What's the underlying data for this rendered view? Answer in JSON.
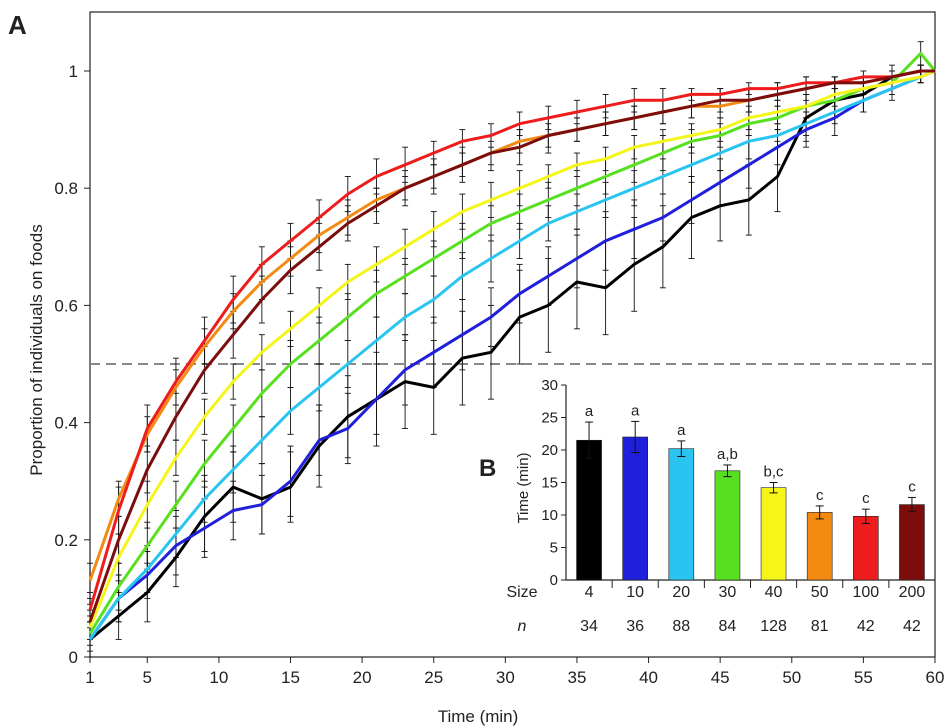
{
  "chart_data": [
    {
      "panel": "A",
      "type": "line",
      "xlabel": "Time (min)",
      "ylabel": "Proportion of individuals on foods",
      "xlim": [
        1,
        60
      ],
      "ylim": [
        0,
        1.0
      ],
      "xticks": [
        1,
        5,
        10,
        15,
        20,
        25,
        30,
        35,
        40,
        45,
        50,
        55,
        60
      ],
      "yticks": [
        0,
        0.2,
        0.4,
        0.6,
        0.8,
        1
      ],
      "ytick_labels": [
        "0",
        "0.2",
        "0.4",
        "0.6",
        "0.8",
        "1"
      ],
      "reference_line": {
        "y": 0.5,
        "style": "dashed"
      },
      "error_bars": true,
      "grid": false,
      "series": [
        {
          "color": "#000000",
          "x": [
            1,
            3,
            5,
            7,
            9,
            11,
            13,
            15,
            17,
            19,
            21,
            23,
            25,
            27,
            29,
            31,
            33,
            35,
            37,
            39,
            41,
            43,
            45,
            47,
            49,
            51,
            53,
            55,
            57,
            59,
            60
          ],
          "y": [
            0.03,
            0.07,
            0.11,
            0.17,
            0.24,
            0.29,
            0.27,
            0.29,
            0.36,
            0.41,
            0.44,
            0.47,
            0.46,
            0.51,
            0.52,
            0.58,
            0.6,
            0.64,
            0.63,
            0.67,
            0.7,
            0.75,
            0.77,
            0.78,
            0.82,
            0.92,
            0.95,
            0.96,
            0.99,
            1.0,
            1.0
          ],
          "err": [
            0.03,
            0.04,
            0.05,
            0.05,
            0.06,
            0.06,
            0.06,
            0.06,
            0.07,
            0.07,
            0.08,
            0.08,
            0.08,
            0.08,
            0.08,
            0.08,
            0.08,
            0.08,
            0.08,
            0.08,
            0.07,
            0.07,
            0.06,
            0.06,
            0.06,
            0.04,
            0.03,
            0.03,
            0.02,
            0.01,
            0.0
          ]
        },
        {
          "color": "#1f1fdc",
          "x": [
            1,
            3,
            5,
            7,
            9,
            11,
            13,
            15,
            17,
            19,
            21,
            23,
            25,
            27,
            29,
            31,
            33,
            35,
            37,
            39,
            41,
            43,
            45,
            47,
            49,
            51,
            53,
            55,
            57,
            59,
            60
          ],
          "y": [
            0.03,
            0.1,
            0.14,
            0.19,
            0.22,
            0.25,
            0.26,
            0.3,
            0.37,
            0.39,
            0.44,
            0.49,
            0.52,
            0.55,
            0.58,
            0.62,
            0.65,
            0.68,
            0.71,
            0.73,
            0.75,
            0.78,
            0.81,
            0.84,
            0.87,
            0.9,
            0.92,
            0.95,
            0.97,
            0.99,
            1.0
          ],
          "err": [
            0.03,
            0.04,
            0.04,
            0.05,
            0.05,
            0.05,
            0.05,
            0.06,
            0.06,
            0.06,
            0.06,
            0.06,
            0.06,
            0.06,
            0.05,
            0.05,
            0.05,
            0.05,
            0.05,
            0.05,
            0.04,
            0.04,
            0.04,
            0.04,
            0.03,
            0.03,
            0.03,
            0.02,
            0.02,
            0.01,
            0.0
          ]
        },
        {
          "color": "#29c5f0",
          "x": [
            1,
            3,
            5,
            7,
            9,
            11,
            13,
            15,
            17,
            19,
            21,
            23,
            25,
            27,
            29,
            31,
            33,
            35,
            37,
            39,
            41,
            43,
            45,
            47,
            49,
            51,
            53,
            55,
            57,
            59,
            60
          ],
          "y": [
            0.03,
            0.1,
            0.15,
            0.21,
            0.27,
            0.32,
            0.37,
            0.42,
            0.46,
            0.5,
            0.54,
            0.58,
            0.61,
            0.65,
            0.68,
            0.71,
            0.74,
            0.76,
            0.78,
            0.8,
            0.82,
            0.84,
            0.86,
            0.88,
            0.89,
            0.91,
            0.93,
            0.95,
            0.97,
            0.99,
            1.0
          ],
          "err": [
            0.03,
            0.04,
            0.04,
            0.04,
            0.04,
            0.04,
            0.04,
            0.04,
            0.04,
            0.04,
            0.04,
            0.04,
            0.04,
            0.04,
            0.04,
            0.03,
            0.03,
            0.03,
            0.03,
            0.03,
            0.03,
            0.03,
            0.03,
            0.03,
            0.02,
            0.02,
            0.02,
            0.02,
            0.01,
            0.01,
            0.0
          ]
        },
        {
          "color": "#57e01f",
          "x": [
            1,
            3,
            5,
            7,
            9,
            11,
            13,
            15,
            17,
            19,
            21,
            23,
            25,
            27,
            29,
            31,
            33,
            35,
            37,
            39,
            41,
            43,
            45,
            47,
            49,
            51,
            53,
            55,
            57,
            59,
            60
          ],
          "y": [
            0.04,
            0.12,
            0.19,
            0.26,
            0.33,
            0.39,
            0.45,
            0.5,
            0.54,
            0.58,
            0.62,
            0.65,
            0.68,
            0.71,
            0.74,
            0.76,
            0.78,
            0.8,
            0.82,
            0.84,
            0.86,
            0.88,
            0.89,
            0.91,
            0.92,
            0.94,
            0.95,
            0.97,
            0.98,
            1.03,
            1.0
          ],
          "err": [
            0.03,
            0.04,
            0.04,
            0.04,
            0.04,
            0.04,
            0.04,
            0.04,
            0.04,
            0.04,
            0.04,
            0.03,
            0.03,
            0.03,
            0.03,
            0.03,
            0.03,
            0.03,
            0.03,
            0.03,
            0.03,
            0.02,
            0.02,
            0.02,
            0.02,
            0.02,
            0.02,
            0.01,
            0.01,
            0.02,
            0.0
          ]
        },
        {
          "color": "#f5f51a",
          "x": [
            1,
            3,
            5,
            7,
            9,
            11,
            13,
            15,
            17,
            19,
            21,
            23,
            25,
            27,
            29,
            31,
            33,
            35,
            37,
            39,
            41,
            43,
            45,
            47,
            49,
            51,
            53,
            55,
            57,
            59,
            60
          ],
          "y": [
            0.05,
            0.17,
            0.26,
            0.34,
            0.41,
            0.47,
            0.52,
            0.56,
            0.6,
            0.64,
            0.67,
            0.7,
            0.73,
            0.76,
            0.78,
            0.8,
            0.82,
            0.84,
            0.85,
            0.87,
            0.88,
            0.89,
            0.9,
            0.92,
            0.93,
            0.94,
            0.96,
            0.97,
            0.98,
            0.99,
            1.0
          ],
          "err": [
            0.03,
            0.04,
            0.04,
            0.03,
            0.03,
            0.03,
            0.03,
            0.03,
            0.03,
            0.03,
            0.03,
            0.03,
            0.03,
            0.03,
            0.03,
            0.03,
            0.02,
            0.02,
            0.02,
            0.02,
            0.02,
            0.02,
            0.02,
            0.02,
            0.02,
            0.02,
            0.02,
            0.01,
            0.01,
            0.01,
            0.0
          ]
        },
        {
          "color": "#f38a12",
          "x": [
            1,
            3,
            5,
            7,
            9,
            11,
            13,
            15,
            17,
            19,
            21,
            23,
            25,
            27,
            29,
            31,
            33,
            35,
            37,
            39,
            41,
            43,
            45,
            47,
            49,
            51,
            53,
            55,
            57,
            59,
            60
          ],
          "y": [
            0.13,
            0.27,
            0.38,
            0.46,
            0.53,
            0.59,
            0.64,
            0.68,
            0.72,
            0.75,
            0.78,
            0.8,
            0.82,
            0.84,
            0.86,
            0.88,
            0.89,
            0.9,
            0.91,
            0.92,
            0.93,
            0.94,
            0.94,
            0.95,
            0.96,
            0.97,
            0.98,
            0.98,
            0.99,
            1.0,
            1.0
          ],
          "err": [
            0.03,
            0.03,
            0.03,
            0.03,
            0.03,
            0.03,
            0.03,
            0.03,
            0.03,
            0.03,
            0.02,
            0.02,
            0.02,
            0.02,
            0.02,
            0.02,
            0.02,
            0.02,
            0.02,
            0.02,
            0.02,
            0.02,
            0.02,
            0.02,
            0.01,
            0.01,
            0.01,
            0.01,
            0.01,
            0.01,
            0.0
          ]
        },
        {
          "color": "#ee1c1c",
          "x": [
            1,
            3,
            5,
            7,
            9,
            11,
            13,
            15,
            17,
            19,
            21,
            23,
            25,
            27,
            29,
            31,
            33,
            35,
            37,
            39,
            41,
            43,
            45,
            47,
            49,
            51,
            53,
            55,
            57,
            59,
            60
          ],
          "y": [
            0.08,
            0.25,
            0.39,
            0.47,
            0.54,
            0.61,
            0.67,
            0.71,
            0.75,
            0.79,
            0.82,
            0.84,
            0.86,
            0.88,
            0.89,
            0.91,
            0.92,
            0.93,
            0.94,
            0.95,
            0.95,
            0.96,
            0.96,
            0.97,
            0.97,
            0.98,
            0.98,
            0.99,
            0.99,
            1.0,
            1.0
          ],
          "err": [
            0.03,
            0.04,
            0.04,
            0.04,
            0.04,
            0.04,
            0.03,
            0.03,
            0.03,
            0.03,
            0.03,
            0.03,
            0.02,
            0.02,
            0.02,
            0.02,
            0.02,
            0.02,
            0.02,
            0.02,
            0.02,
            0.01,
            0.01,
            0.01,
            0.01,
            0.01,
            0.01,
            0.01,
            0.01,
            0.01,
            0.0
          ]
        },
        {
          "color": "#7d0d0d",
          "x": [
            1,
            3,
            5,
            7,
            9,
            11,
            13,
            15,
            17,
            19,
            21,
            23,
            25,
            27,
            29,
            31,
            33,
            35,
            37,
            39,
            41,
            43,
            45,
            47,
            49,
            51,
            53,
            55,
            57,
            59,
            60
          ],
          "y": [
            0.06,
            0.2,
            0.32,
            0.41,
            0.49,
            0.55,
            0.61,
            0.66,
            0.7,
            0.74,
            0.77,
            0.8,
            0.82,
            0.84,
            0.86,
            0.87,
            0.89,
            0.9,
            0.91,
            0.92,
            0.93,
            0.94,
            0.95,
            0.95,
            0.96,
            0.97,
            0.98,
            0.98,
            0.99,
            1.0,
            1.0
          ],
          "err": [
            0.03,
            0.04,
            0.04,
            0.04,
            0.04,
            0.04,
            0.04,
            0.04,
            0.04,
            0.03,
            0.03,
            0.03,
            0.03,
            0.03,
            0.03,
            0.03,
            0.03,
            0.02,
            0.02,
            0.02,
            0.02,
            0.02,
            0.02,
            0.02,
            0.02,
            0.02,
            0.01,
            0.01,
            0.01,
            0.01,
            0.0
          ]
        }
      ]
    },
    {
      "panel": "B",
      "type": "bar",
      "ylabel": "Time (min)",
      "ylim": [
        0,
        30
      ],
      "yticks": [
        0,
        5,
        10,
        15,
        20,
        25,
        30
      ],
      "row_labels": {
        "size": "Size",
        "n": "n"
      },
      "categories": [
        "4",
        "10",
        "20",
        "30",
        "40",
        "50",
        "100",
        "200"
      ],
      "n_values": [
        "34",
        "36",
        "88",
        "84",
        "128",
        "81",
        "42",
        "42"
      ],
      "values": [
        21.5,
        22.0,
        20.2,
        16.8,
        14.2,
        10.4,
        9.8,
        11.6
      ],
      "errors": [
        2.8,
        2.4,
        1.2,
        0.9,
        0.8,
        1.0,
        1.1,
        1.1
      ],
      "significance": [
        "a",
        "a",
        "a",
        "a,b",
        "b,c",
        "c",
        "c",
        "c"
      ],
      "colors": [
        "#000000",
        "#1f1fdc",
        "#29c5f0",
        "#57e01f",
        "#f5f51a",
        "#f38a12",
        "#ee1c1c",
        "#7d0d0d"
      ]
    }
  ],
  "panel_labels": {
    "a": "A",
    "b": "B"
  }
}
